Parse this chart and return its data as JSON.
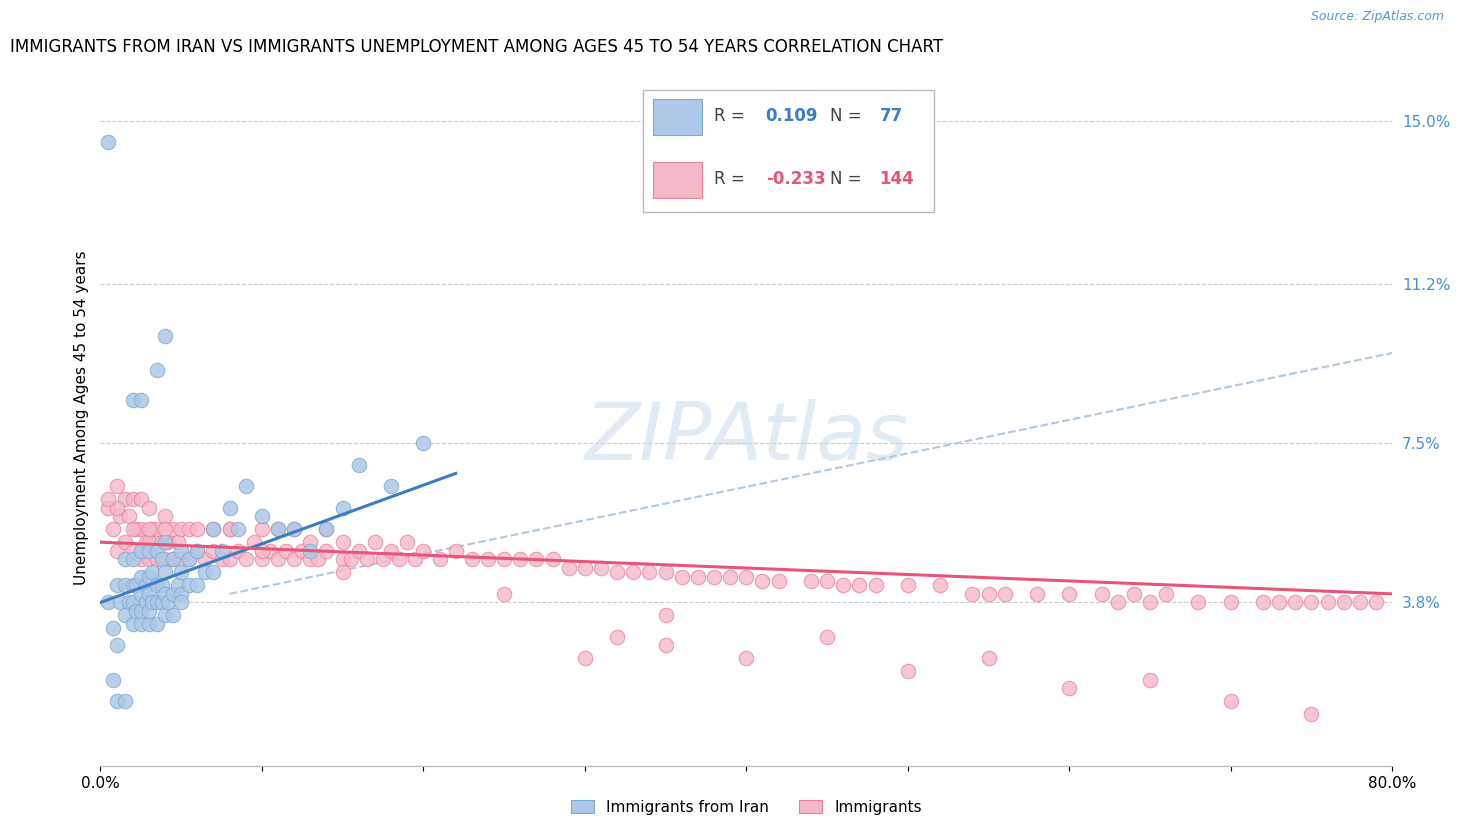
{
  "title": "IMMIGRANTS FROM IRAN VS IMMIGRANTS UNEMPLOYMENT AMONG AGES 45 TO 54 YEARS CORRELATION CHART",
  "source": "Source: ZipAtlas.com",
  "ylabel": "Unemployment Among Ages 45 to 54 years",
  "xlim": [
    0.0,
    0.8
  ],
  "ylim": [
    0.0,
    0.16
  ],
  "ytick_positions": [
    0.038,
    0.075,
    0.112,
    0.15
  ],
  "ytick_labels": [
    "3.8%",
    "7.5%",
    "11.2%",
    "15.0%"
  ],
  "blue_color": "#adc8e8",
  "blue_edge": "#80aad0",
  "pink_color": "#f5b8c8",
  "pink_edge": "#e88098",
  "trend_blue_color": "#3a7fc1",
  "trend_pink_color": "#e85578",
  "dashed_color": "#b0c8e0",
  "legend_label1": "Immigrants from Iran",
  "legend_label2": "Immigrants",
  "watermark": "ZIPAtlas",
  "title_fontsize": 12,
  "axis_label_fontsize": 11,
  "tick_fontsize": 11,
  "right_tick_color": "#4a90d9",
  "blue_R": 0.109,
  "blue_N": 77,
  "pink_R": -0.233,
  "pink_N": 144,
  "blue_x": [
    0.005,
    0.008,
    0.01,
    0.01,
    0.012,
    0.015,
    0.015,
    0.015,
    0.018,
    0.02,
    0.02,
    0.02,
    0.02,
    0.022,
    0.022,
    0.025,
    0.025,
    0.025,
    0.025,
    0.025,
    0.028,
    0.028,
    0.03,
    0.03,
    0.03,
    0.03,
    0.03,
    0.032,
    0.032,
    0.035,
    0.035,
    0.035,
    0.035,
    0.038,
    0.038,
    0.038,
    0.04,
    0.04,
    0.04,
    0.04,
    0.042,
    0.045,
    0.045,
    0.045,
    0.048,
    0.05,
    0.05,
    0.05,
    0.055,
    0.055,
    0.06,
    0.06,
    0.065,
    0.07,
    0.075,
    0.08,
    0.085,
    0.09,
    0.1,
    0.11,
    0.12,
    0.13,
    0.14,
    0.15,
    0.16,
    0.18,
    0.2,
    0.005,
    0.008,
    0.01,
    0.015,
    0.02,
    0.025,
    0.035,
    0.04,
    0.05,
    0.07
  ],
  "blue_y": [
    0.038,
    0.032,
    0.028,
    0.042,
    0.038,
    0.035,
    0.042,
    0.048,
    0.038,
    0.033,
    0.038,
    0.042,
    0.048,
    0.036,
    0.042,
    0.033,
    0.036,
    0.04,
    0.044,
    0.05,
    0.038,
    0.042,
    0.033,
    0.036,
    0.04,
    0.044,
    0.05,
    0.038,
    0.045,
    0.033,
    0.038,
    0.042,
    0.05,
    0.038,
    0.042,
    0.048,
    0.035,
    0.04,
    0.045,
    0.052,
    0.038,
    0.035,
    0.04,
    0.048,
    0.042,
    0.04,
    0.045,
    0.05,
    0.042,
    0.048,
    0.042,
    0.05,
    0.045,
    0.055,
    0.05,
    0.06,
    0.055,
    0.065,
    0.058,
    0.055,
    0.055,
    0.05,
    0.055,
    0.06,
    0.07,
    0.065,
    0.075,
    0.145,
    0.02,
    0.015,
    0.015,
    0.085,
    0.085,
    0.092,
    0.1,
    0.038,
    0.045
  ],
  "pink_x": [
    0.005,
    0.008,
    0.01,
    0.01,
    0.012,
    0.015,
    0.015,
    0.018,
    0.02,
    0.02,
    0.022,
    0.025,
    0.025,
    0.025,
    0.028,
    0.03,
    0.03,
    0.03,
    0.032,
    0.035,
    0.035,
    0.038,
    0.04,
    0.04,
    0.04,
    0.042,
    0.045,
    0.045,
    0.048,
    0.05,
    0.05,
    0.055,
    0.055,
    0.06,
    0.065,
    0.07,
    0.07,
    0.075,
    0.08,
    0.08,
    0.085,
    0.09,
    0.095,
    0.1,
    0.1,
    0.105,
    0.11,
    0.11,
    0.115,
    0.12,
    0.12,
    0.125,
    0.13,
    0.13,
    0.135,
    0.14,
    0.14,
    0.15,
    0.15,
    0.155,
    0.16,
    0.165,
    0.17,
    0.175,
    0.18,
    0.185,
    0.19,
    0.195,
    0.2,
    0.21,
    0.22,
    0.23,
    0.24,
    0.25,
    0.26,
    0.27,
    0.28,
    0.29,
    0.3,
    0.31,
    0.32,
    0.33,
    0.34,
    0.35,
    0.36,
    0.37,
    0.38,
    0.39,
    0.4,
    0.41,
    0.42,
    0.44,
    0.45,
    0.46,
    0.47,
    0.48,
    0.5,
    0.52,
    0.54,
    0.55,
    0.56,
    0.58,
    0.6,
    0.62,
    0.63,
    0.64,
    0.65,
    0.66,
    0.68,
    0.7,
    0.72,
    0.73,
    0.74,
    0.75,
    0.76,
    0.77,
    0.78,
    0.79,
    0.3,
    0.32,
    0.35,
    0.4,
    0.5,
    0.6,
    0.7,
    0.75,
    0.65,
    0.55,
    0.45,
    0.35,
    0.25,
    0.15,
    0.1,
    0.08,
    0.06,
    0.04,
    0.03,
    0.02,
    0.01,
    0.005
  ],
  "pink_y": [
    0.06,
    0.055,
    0.05,
    0.065,
    0.058,
    0.052,
    0.062,
    0.058,
    0.05,
    0.062,
    0.055,
    0.048,
    0.055,
    0.062,
    0.052,
    0.048,
    0.052,
    0.06,
    0.055,
    0.048,
    0.055,
    0.052,
    0.048,
    0.052,
    0.058,
    0.052,
    0.048,
    0.055,
    0.052,
    0.048,
    0.055,
    0.048,
    0.055,
    0.05,
    0.048,
    0.05,
    0.055,
    0.048,
    0.048,
    0.055,
    0.05,
    0.048,
    0.052,
    0.048,
    0.055,
    0.05,
    0.048,
    0.055,
    0.05,
    0.048,
    0.055,
    0.05,
    0.048,
    0.052,
    0.048,
    0.05,
    0.055,
    0.048,
    0.052,
    0.048,
    0.05,
    0.048,
    0.052,
    0.048,
    0.05,
    0.048,
    0.052,
    0.048,
    0.05,
    0.048,
    0.05,
    0.048,
    0.048,
    0.048,
    0.048,
    0.048,
    0.048,
    0.046,
    0.046,
    0.046,
    0.045,
    0.045,
    0.045,
    0.045,
    0.044,
    0.044,
    0.044,
    0.044,
    0.044,
    0.043,
    0.043,
    0.043,
    0.043,
    0.042,
    0.042,
    0.042,
    0.042,
    0.042,
    0.04,
    0.04,
    0.04,
    0.04,
    0.04,
    0.04,
    0.038,
    0.04,
    0.038,
    0.04,
    0.038,
    0.038,
    0.038,
    0.038,
    0.038,
    0.038,
    0.038,
    0.038,
    0.038,
    0.038,
    0.025,
    0.03,
    0.028,
    0.025,
    0.022,
    0.018,
    0.015,
    0.012,
    0.02,
    0.025,
    0.03,
    0.035,
    0.04,
    0.045,
    0.05,
    0.055,
    0.055,
    0.055,
    0.055,
    0.055,
    0.06,
    0.062
  ]
}
